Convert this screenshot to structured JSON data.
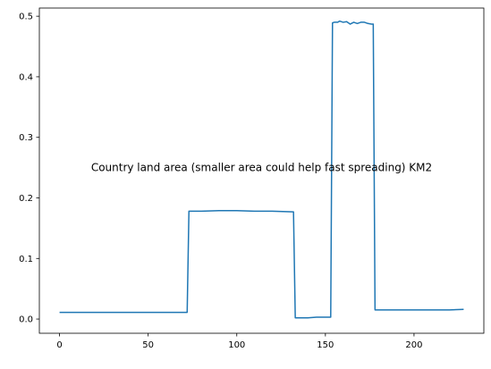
{
  "chart_data": {
    "type": "line",
    "title": "Country land area (smaller area could help fast spreading) KM2",
    "xlabel": "",
    "ylabel": "",
    "xlim": [
      -11.4,
      239.4
    ],
    "ylim": [
      -0.0235,
      0.5135
    ],
    "x_ticks": [
      0,
      50,
      100,
      150,
      200
    ],
    "y_ticks": [
      0.0,
      0.1,
      0.2,
      0.3,
      0.4,
      0.5
    ],
    "x_tick_labels": [
      "0",
      "50",
      "100",
      "150",
      "200"
    ],
    "y_tick_labels": [
      "0.0",
      "0.1",
      "0.2",
      "0.3",
      "0.4",
      "0.5"
    ],
    "grid": false,
    "legend": "none",
    "series": [
      {
        "color": "#1f77b4",
        "x": [
          0,
          20,
          40,
          60,
          72,
          73,
          80,
          90,
          100,
          110,
          120,
          132,
          133,
          140,
          145,
          150,
          153,
          154,
          155,
          157,
          158,
          160,
          162,
          164,
          166,
          168,
          170,
          172,
          174,
          176,
          177,
          178,
          180,
          190,
          200,
          210,
          220,
          228
        ],
        "y": [
          0.011,
          0.011,
          0.011,
          0.011,
          0.011,
          0.178,
          0.178,
          0.179,
          0.179,
          0.178,
          0.178,
          0.177,
          0.002,
          0.002,
          0.003,
          0.003,
          0.003,
          0.489,
          0.49,
          0.49,
          0.492,
          0.49,
          0.491,
          0.487,
          0.49,
          0.488,
          0.49,
          0.49,
          0.488,
          0.487,
          0.487,
          0.015,
          0.015,
          0.015,
          0.015,
          0.015,
          0.015,
          0.016
        ]
      }
    ]
  }
}
